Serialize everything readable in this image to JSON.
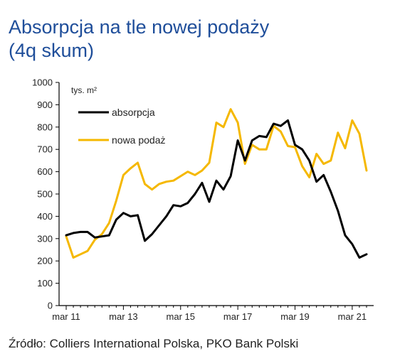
{
  "title": {
    "line1": "Absorpcja na tle nowej podaży",
    "line2": "(4q skum)"
  },
  "source": "Źródło: Colliers International Polska, PKO Bank Polski",
  "colors": {
    "title": "#1f4e9a",
    "absorpcja": "#000000",
    "nowa_podaz": "#f5b800",
    "axis": "#000000"
  },
  "chart_data": {
    "type": "line",
    "unit_label": "tys. m²",
    "x_tick_labels": [
      "mar 11",
      "mar 13",
      "mar 15",
      "mar 17",
      "mar 19",
      "mar 21"
    ],
    "x_tick_positions": [
      0,
      8,
      16,
      24,
      32,
      40
    ],
    "y_ticks": [
      0,
      100,
      200,
      300,
      400,
      500,
      600,
      700,
      800,
      900,
      1000
    ],
    "ylim": [
      0,
      1000
    ],
    "grid": false,
    "legend_position": "top-left",
    "series": [
      {
        "name": "absorpcja",
        "color": "#000000",
        "values": [
          315,
          325,
          330,
          330,
          305,
          310,
          315,
          385,
          415,
          400,
          405,
          290,
          320,
          360,
          400,
          450,
          445,
          460,
          500,
          550,
          465,
          560,
          520,
          580,
          740,
          650,
          740,
          760,
          755,
          815,
          805,
          830,
          720,
          700,
          650,
          555,
          585,
          510,
          425,
          315,
          275,
          215,
          230
        ]
      },
      {
        "name": "nowa podaż",
        "color": "#f5b800",
        "values": [
          310,
          215,
          230,
          245,
          295,
          320,
          370,
          470,
          585,
          615,
          640,
          545,
          520,
          545,
          555,
          560,
          580,
          600,
          585,
          605,
          640,
          820,
          800,
          880,
          820,
          635,
          720,
          700,
          700,
          805,
          780,
          715,
          710,
          625,
          575,
          680,
          635,
          650,
          775,
          705,
          830,
          770,
          605
        ]
      }
    ]
  }
}
